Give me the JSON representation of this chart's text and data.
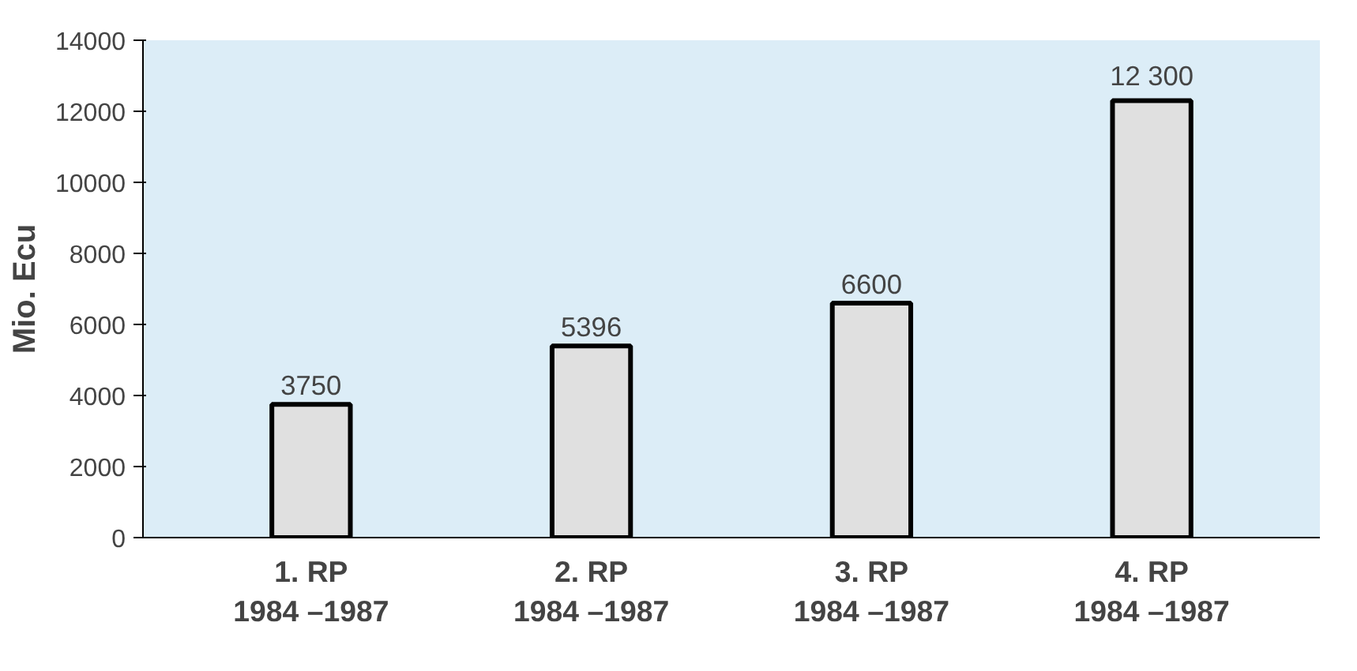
{
  "chart_data": {
    "type": "bar",
    "ylabel": "Mio. Ecu",
    "categories": [
      "1. RP\n1984 –1987",
      "2. RP\n1984 –1987",
      "3. RP\n1984 –1987",
      "4. RP\n1984 –1987"
    ],
    "values": [
      3750,
      5396,
      6600,
      12300
    ],
    "value_labels": [
      "3750",
      "5396",
      "6600",
      "12 300"
    ],
    "color": "#e0e0e0",
    "ylim": [
      0,
      14000
    ],
    "yticks": [
      0,
      2000,
      4000,
      6000,
      8000,
      10000,
      12000,
      14000
    ],
    "grid": false
  }
}
